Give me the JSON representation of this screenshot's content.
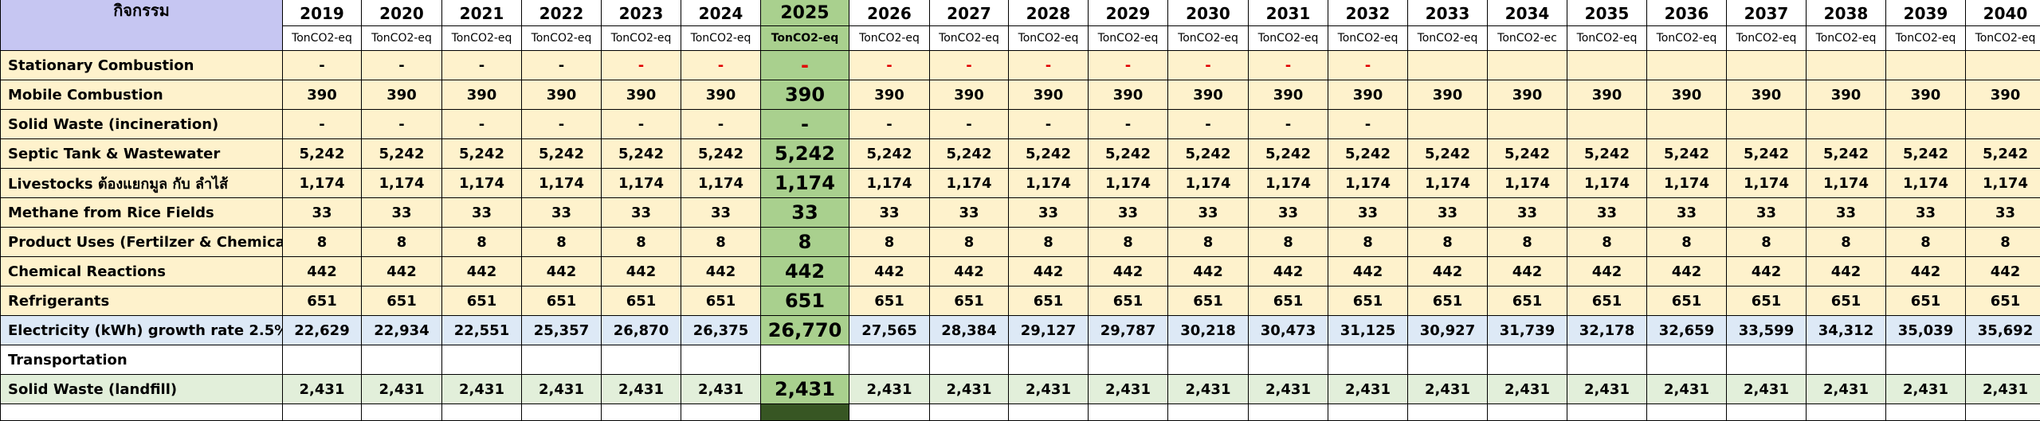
{
  "header": {
    "activity_label": "กิจกรรม",
    "years": [
      "2019",
      "2020",
      "2021",
      "2022",
      "2023",
      "2024",
      "2025",
      "2026",
      "2027",
      "2028",
      "2029",
      "2030",
      "2031",
      "2032",
      "2033",
      "2034",
      "2035",
      "2036",
      "2037",
      "2038",
      "2039",
      "2040"
    ],
    "units": [
      "TonCO2-eq",
      "TonCO2-eq",
      "TonCO2-eq",
      "TonCO2-eq",
      "TonCO2-eq",
      "TonCO2-eq",
      "TonCO2-eq",
      "TonCO2-eq",
      "TonCO2-eq",
      "TonCO2-eq",
      "TonCO2-eq",
      "TonCO2-eq",
      "TonCO2-eq",
      "TonCO2-eq",
      "TonCO2-eq",
      "TonCO2-ec",
      "TonCO2-eq",
      "TonCO2-eq",
      "TonCO2-eq",
      "TonCO2-eq",
      "TonCO2-eq",
      "TonCO2-eq"
    ]
  },
  "rows": [
    {
      "label": "Stationary Combustion",
      "values": [
        "-",
        "-",
        "-",
        "-",
        "-",
        "-",
        "-",
        "-",
        "-",
        "-",
        "-",
        "-",
        "-",
        "-",
        "",
        "",
        "",
        "",
        "",
        "",
        "",
        ""
      ]
    },
    {
      "label": "Mobile Combustion",
      "values": [
        "390",
        "390",
        "390",
        "390",
        "390",
        "390",
        "390",
        "390",
        "390",
        "390",
        "390",
        "390",
        "390",
        "390",
        "390",
        "390",
        "390",
        "390",
        "390",
        "390",
        "390",
        "390"
      ]
    },
    {
      "label": "Solid Waste (incineration)",
      "values": [
        "-",
        "-",
        "-",
        "-",
        "-",
        "-",
        "-",
        "-",
        "-",
        "-",
        "-",
        "-",
        "-",
        "-",
        "",
        "",
        "",
        "",
        "",
        "",
        "",
        ""
      ]
    },
    {
      "label": "Septic Tank & Wastewater",
      "values": [
        "5,242",
        "5,242",
        "5,242",
        "5,242",
        "5,242",
        "5,242",
        "5,242",
        "5,242",
        "5,242",
        "5,242",
        "5,242",
        "5,242",
        "5,242",
        "5,242",
        "5,242",
        "5,242",
        "5,242",
        "5,242",
        "5,242",
        "5,242",
        "5,242",
        "5,242"
      ]
    },
    {
      "label": "Livestocks ต้องแยกมูล กับ ลำไส้",
      "values": [
        "1,174",
        "1,174",
        "1,174",
        "1,174",
        "1,174",
        "1,174",
        "1,174",
        "1,174",
        "1,174",
        "1,174",
        "1,174",
        "1,174",
        "1,174",
        "1,174",
        "1,174",
        "1,174",
        "1,174",
        "1,174",
        "1,174",
        "1,174",
        "1,174",
        "1,174"
      ]
    },
    {
      "label": "Methane from Rice Fields",
      "values": [
        "33",
        "33",
        "33",
        "33",
        "33",
        "33",
        "33",
        "33",
        "33",
        "33",
        "33",
        "33",
        "33",
        "33",
        "33",
        "33",
        "33",
        "33",
        "33",
        "33",
        "33",
        "33"
      ]
    },
    {
      "label": "Product Uses (Fertilzer & Chemicals",
      "values": [
        "8",
        "8",
        "8",
        "8",
        "8",
        "8",
        "8",
        "8",
        "8",
        "8",
        "8",
        "8",
        "8",
        "8",
        "8",
        "8",
        "8",
        "8",
        "8",
        "8",
        "8",
        "8"
      ]
    },
    {
      "label": "Chemical Reactions",
      "values": [
        "442",
        "442",
        "442",
        "442",
        "442",
        "442",
        "442",
        "442",
        "442",
        "442",
        "442",
        "442",
        "442",
        "442",
        "442",
        "442",
        "442",
        "442",
        "442",
        "442",
        "442",
        "442"
      ]
    },
    {
      "label": "Refrigerants",
      "values": [
        "651",
        "651",
        "651",
        "651",
        "651",
        "651",
        "651",
        "651",
        "651",
        "651",
        "651",
        "651",
        "651",
        "651",
        "651",
        "651",
        "651",
        "651",
        "651",
        "651",
        "651",
        "651"
      ]
    },
    {
      "label": "Electricity (kWh) growth rate 2.5%",
      "values": [
        "22,629",
        "22,934",
        "22,551",
        "25,357",
        "26,870",
        "26,375",
        "26,770",
        "27,565",
        "28,384",
        "29,127",
        "29,787",
        "30,218",
        "30,473",
        "31,125",
        "30,927",
        "31,739",
        "32,178",
        "32,659",
        "33,599",
        "34,312",
        "35,039",
        "35,692"
      ]
    },
    {
      "label": "Transportation",
      "values": [
        "",
        "",
        "",
        "",
        "",
        "",
        "",
        "",
        "",
        "",
        "",
        "",
        "",
        "",
        "",
        "",
        "",
        "",
        "",
        "",
        "",
        ""
      ]
    },
    {
      "label": "Solid Waste (landfill)",
      "values": [
        "2,431",
        "2,431",
        "2,431",
        "2,431",
        "2,431",
        "2,431",
        "2,431",
        "2,431",
        "2,431",
        "2,431",
        "2,431",
        "2,431",
        "2,431",
        "2,431",
        "2,431",
        "2,431",
        "2,431",
        "2,431",
        "2,431",
        "2,431",
        "2,431",
        "2,431"
      ]
    }
  ]
}
